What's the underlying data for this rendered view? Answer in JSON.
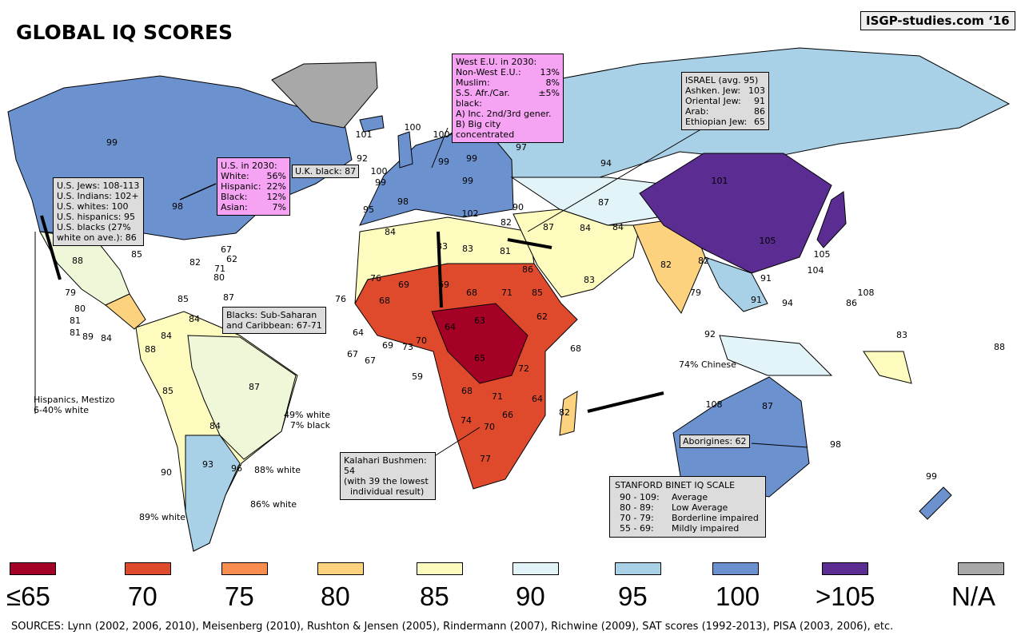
{
  "title": "GLOBAL IQ SCORES",
  "credit": "ISGP-studies.com ‘16",
  "colors": {
    "le65": "#a50026",
    "c70": "#e04a2c",
    "c75": "#f88d4f",
    "c80": "#fdd27e",
    "c85": "#fefbbf",
    "c90": "#e2f4f8",
    "c95": "#a8d0e6",
    "c100": "#6b92cf",
    "gt105": "#5b2c91",
    "na": "#a8a8a8",
    "alt85": "#eef8d8"
  },
  "legend": [
    {
      "label": "≤65",
      "color": "#a50026"
    },
    {
      "label": "70",
      "color": "#e04a2c"
    },
    {
      "label": "75",
      "color": "#f88d4f"
    },
    {
      "label": "80",
      "color": "#fdd27e"
    },
    {
      "label": "85",
      "color": "#fefbbf"
    },
    {
      "label": "90",
      "color": "#e2f4f8"
    },
    {
      "label": "95",
      "color": "#a8d0e6"
    },
    {
      "label": "100",
      "color": "#6b92cf"
    },
    {
      "label": ">105",
      "color": "#5b2c91"
    },
    {
      "label": "N/A",
      "color": "#a8a8a8"
    }
  ],
  "us_box": [
    "U.S. Jews: 108-113",
    "U.S. Indians:  102+",
    "U.S. whites:   100",
    "U.S. hispanics: 95",
    "U.S. blacks (27%",
    "white on ave.): 86"
  ],
  "us2030": {
    "title": "U.S. in 2030:",
    "rows": [
      [
        "White:",
        "56%"
      ],
      [
        "Hispanic:",
        "22%"
      ],
      [
        "Black:",
        "12%"
      ],
      [
        "Asian:",
        "7%"
      ]
    ]
  },
  "uk_black": "U.K. black: 87",
  "eu2030": {
    "title": "West E.U. in 2030:",
    "rows": [
      [
        "Non-West E.U.:",
        "13%"
      ],
      [
        "Muslim:",
        "8%"
      ],
      [
        "S.S. Afr./Car. black:",
        "±5%"
      ]
    ],
    "notes": [
      "A) Inc. 2nd/3rd gener.",
      "B) Big city concentrated"
    ]
  },
  "israel": {
    "title": "ISRAEL (avg. 95)",
    "rows": [
      [
        "Ashken. Jew:",
        "103"
      ],
      [
        "Oriental Jew:",
        "91"
      ],
      [
        "Arab:",
        "86"
      ],
      [
        "Ethiopian Jew:",
        "65"
      ]
    ]
  },
  "blacks_box": [
    "Blacks: Sub-Saharan",
    "and Caribbean: 67-71"
  ],
  "hispanics": [
    "Hispanics, Mestizo",
    "6-40% white"
  ],
  "brazil_note": [
    "49% white",
    "7% black"
  ],
  "white_notes": [
    "88% white",
    "86% white",
    "89% white"
  ],
  "kalahari": [
    "Kalahari Bushmen: 54",
    "(with 39 the lowest",
    "individual result)"
  ],
  "aborigines": "Aborigines: 62",
  "chinese": "74% Chinese",
  "stanford": {
    "title": "STANFORD BINET IQ SCALE",
    "rows": [
      [
        "90 - 109:",
        "Average"
      ],
      [
        "80  - 89:",
        "Low Average"
      ],
      [
        "70 - 79:",
        "Borderline impaired"
      ],
      [
        "55 - 69:",
        "Mildly impaired"
      ]
    ]
  },
  "sources": "SOURCES: Lynn (2002, 2006, 2010), Meisenberg (2010), Rushton & Jensen (2005), Rindermann (2007), Richwine (2009), SAT scores (1992-2013), PISA (2003, 2006), etc.",
  "country_labels": [
    "99",
    "98",
    "88",
    "101",
    "100",
    "92",
    "100",
    "99",
    "95",
    "98",
    "99",
    "99",
    "97",
    "94",
    "99",
    "101",
    "105",
    "105",
    "84",
    "83",
    "83",
    "81",
    "76",
    "69",
    "69",
    "68",
    "71",
    "62",
    "68",
    "63",
    "64",
    "65",
    "72",
    "68",
    "71",
    "64",
    "66",
    "70",
    "74",
    "77",
    "82",
    "87",
    "84",
    "84",
    "82",
    "85",
    "83",
    "90",
    "87",
    "82",
    "91",
    "91",
    "94",
    "104",
    "108",
    "86",
    "79",
    "92",
    "108",
    "87",
    "83",
    "88",
    "98",
    "99",
    "84",
    "84",
    "88",
    "85",
    "87",
    "84",
    "93",
    "90",
    "96",
    "79",
    "80",
    "81",
    "81",
    "89",
    "84",
    "85",
    "82",
    "67",
    "62",
    "71",
    "80",
    "87",
    "85",
    "67",
    "64",
    "67",
    "69",
    "73",
    "70",
    "59",
    "76",
    "68",
    "86",
    "100",
    "102",
    "82"
  ]
}
